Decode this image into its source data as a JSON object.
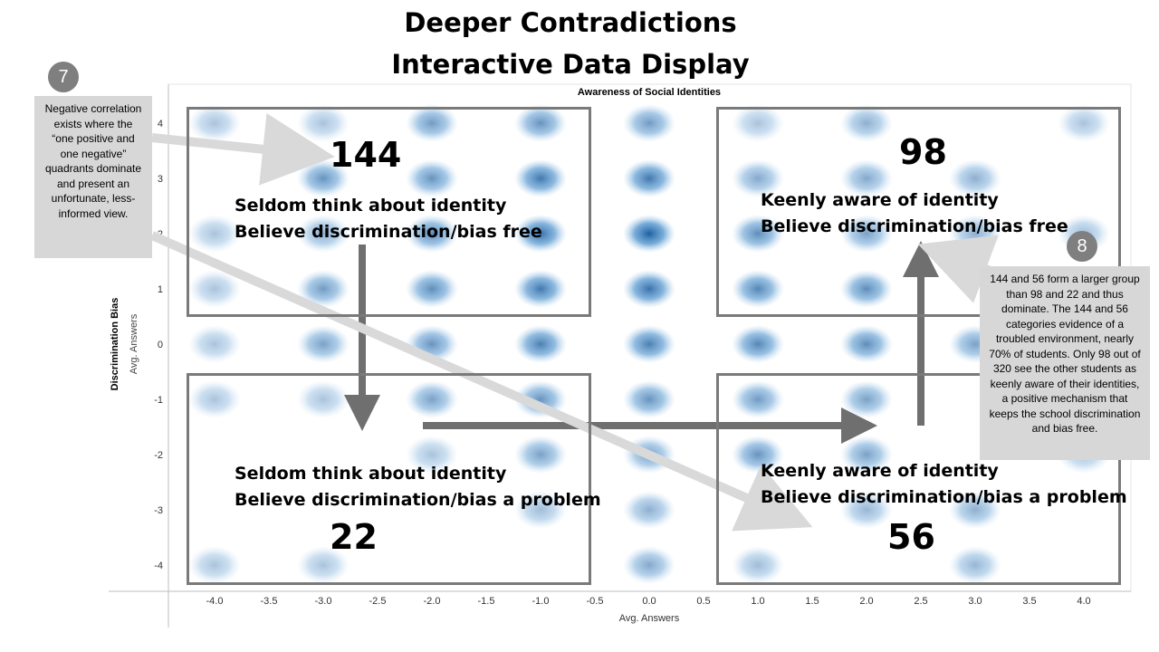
{
  "slide": {
    "title_line1": "Deeper Contradictions",
    "title_line2": "Interactive Data Display"
  },
  "colors": {
    "bubble": "#2f7fc1",
    "box_border": "#7a7a7a",
    "arrow": "#6f6f6f",
    "pointer": "#d9d9d9",
    "callout_bg": "#d7d7d7",
    "badge": "#7f7f7f"
  },
  "chart_data": {
    "type": "scatter",
    "title": "Awareness of Social Identities",
    "xlabel": "Avg. Answers",
    "ylabel": "Discrimination Bias",
    "ylabel_sub": "Avg. Answers",
    "xlim": [
      -4.5,
      4.5
    ],
    "ylim": [
      -4.5,
      4.5
    ],
    "x_ticks": [
      "-4.0",
      "-3.5",
      "-3.0",
      "-2.5",
      "-2.0",
      "-1.5",
      "-1.0",
      "-0.5",
      "0.0",
      "0.5",
      "1.0",
      "1.5",
      "2.0",
      "2.5",
      "3.0",
      "3.5",
      "4.0"
    ],
    "y_ticks": [
      "4",
      "3",
      "2",
      "1",
      "0",
      "-1",
      "-2",
      "-3",
      "-4"
    ],
    "points": [
      {
        "x": -4,
        "y": 4,
        "density": 0.15
      },
      {
        "x": -3,
        "y": 4,
        "density": 0.15
      },
      {
        "x": -2,
        "y": 4,
        "density": 0.45
      },
      {
        "x": -1,
        "y": 4,
        "density": 0.5
      },
      {
        "x": 0,
        "y": 4,
        "density": 0.45
      },
      {
        "x": 1,
        "y": 4,
        "density": 0.15
      },
      {
        "x": 2,
        "y": 4,
        "density": 0.3
      },
      {
        "x": 4,
        "y": 4,
        "density": 0.15
      },
      {
        "x": -3,
        "y": 3,
        "density": 0.5
      },
      {
        "x": -2,
        "y": 3,
        "density": 0.5
      },
      {
        "x": -1,
        "y": 3,
        "density": 0.7
      },
      {
        "x": 0,
        "y": 3,
        "density": 0.7
      },
      {
        "x": 1,
        "y": 3,
        "density": 0.35
      },
      {
        "x": 2,
        "y": 3,
        "density": 0.35
      },
      {
        "x": 3,
        "y": 3,
        "density": 0.3
      },
      {
        "x": -4,
        "y": 2,
        "density": 0.15
      },
      {
        "x": -3,
        "y": 2,
        "density": 0.3
      },
      {
        "x": -2,
        "y": 2,
        "density": 0.55
      },
      {
        "x": -1,
        "y": 2,
        "density": 0.75
      },
      {
        "x": 0,
        "y": 2,
        "density": 0.95
      },
      {
        "x": 1,
        "y": 2,
        "density": 0.55
      },
      {
        "x": 2,
        "y": 2,
        "density": 0.4
      },
      {
        "x": 3,
        "y": 2,
        "density": 0.3
      },
      {
        "x": 4,
        "y": 2,
        "density": 0.2
      },
      {
        "x": -4,
        "y": 1,
        "density": 0.15
      },
      {
        "x": -3,
        "y": 1,
        "density": 0.45
      },
      {
        "x": -2,
        "y": 1,
        "density": 0.55
      },
      {
        "x": -1,
        "y": 1,
        "density": 0.7
      },
      {
        "x": 0,
        "y": 1,
        "density": 0.75
      },
      {
        "x": 1,
        "y": 1,
        "density": 0.6
      },
      {
        "x": 2,
        "y": 1,
        "density": 0.55
      },
      {
        "x": -4,
        "y": 0,
        "density": 0.15
      },
      {
        "x": -3,
        "y": 0,
        "density": 0.4
      },
      {
        "x": -2,
        "y": 0,
        "density": 0.5
      },
      {
        "x": -1,
        "y": 0,
        "density": 0.65
      },
      {
        "x": 0,
        "y": 0,
        "density": 0.65
      },
      {
        "x": 1,
        "y": 0,
        "density": 0.6
      },
      {
        "x": 2,
        "y": 0,
        "density": 0.55
      },
      {
        "x": 3,
        "y": 0,
        "density": 0.4
      },
      {
        "x": -4,
        "y": -1,
        "density": 0.15
      },
      {
        "x": -3,
        "y": -1,
        "density": 0.15
      },
      {
        "x": -2,
        "y": -1,
        "density": 0.4
      },
      {
        "x": -1,
        "y": -1,
        "density": 0.5
      },
      {
        "x": 0,
        "y": -1,
        "density": 0.5
      },
      {
        "x": 1,
        "y": -1,
        "density": 0.45
      },
      {
        "x": 2,
        "y": -1,
        "density": 0.4
      },
      {
        "x": -2,
        "y": -2,
        "density": 0.15
      },
      {
        "x": -1,
        "y": -2,
        "density": 0.4
      },
      {
        "x": 0,
        "y": -2,
        "density": 0.4
      },
      {
        "x": 1,
        "y": -2,
        "density": 0.5
      },
      {
        "x": 2,
        "y": -2,
        "density": 0.4
      },
      {
        "x": 4,
        "y": -2,
        "density": 0.15
      },
      {
        "x": -1,
        "y": -3,
        "density": 0.2
      },
      {
        "x": 0,
        "y": -3,
        "density": 0.3
      },
      {
        "x": 2,
        "y": -3,
        "density": 0.25
      },
      {
        "x": 3,
        "y": -3,
        "density": 0.3
      },
      {
        "x": -4,
        "y": -4,
        "density": 0.15
      },
      {
        "x": -3,
        "y": -4,
        "density": 0.15
      },
      {
        "x": 0,
        "y": -4,
        "density": 0.35
      },
      {
        "x": 1,
        "y": -4,
        "density": 0.2
      },
      {
        "x": 3,
        "y": -4,
        "density": 0.25
      }
    ]
  },
  "quadrants": {
    "top_left": {
      "count": "144",
      "line1": "Seldom think about identity",
      "line2": "Believe discrimination/bias free"
    },
    "top_right": {
      "count": "98",
      "line1": "Keenly aware of identity",
      "line2": "Believe discrimination/bias free"
    },
    "bottom_left": {
      "count": "22",
      "line1": "Seldom think about identity",
      "line2": "Believe discrimination/bias a problem"
    },
    "bottom_right": {
      "count": "56",
      "line1": "Keenly aware of identity",
      "line2": "Believe discrimination/bias a problem"
    }
  },
  "callouts": {
    "left": {
      "badge": "7",
      "text": "Negative correlation exists where the “one positive and one negative” quadrants dominate and present an unfortunate, less-informed view."
    },
    "right": {
      "badge": "8",
      "text": "144 and 56 form a larger group than 98 and 22 and thus dominate. The 144 and 56 categories evidence of a troubled environment, nearly 70% of students.  Only 98 out of 320 see the other students as keenly aware of their identities, a positive mechanism that keeps the school discrimination and bias free."
    }
  }
}
